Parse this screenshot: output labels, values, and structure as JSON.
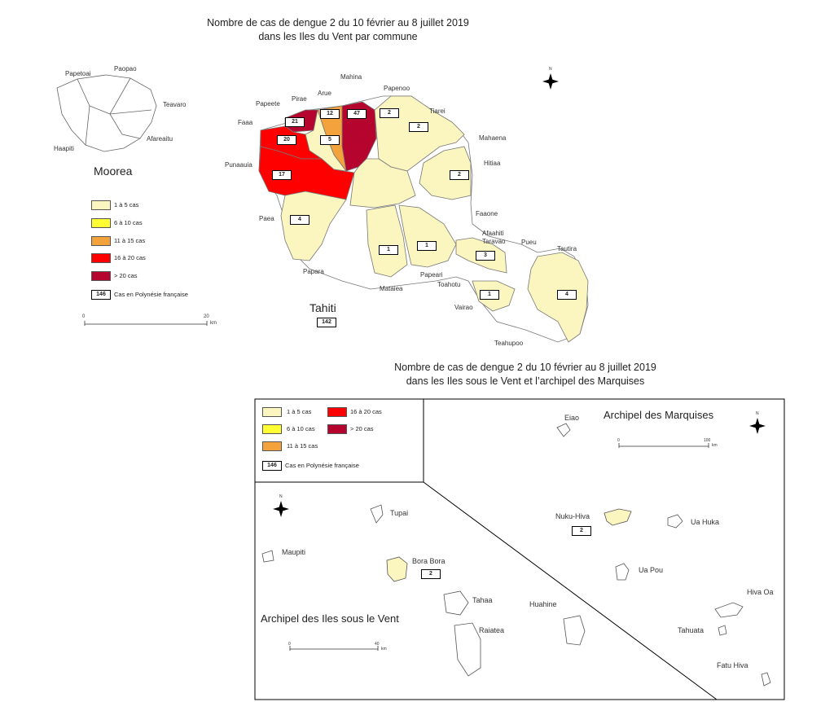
{
  "top_title": {
    "line1": "Nombre de cas de dengue 2 du 10 février au 8 juillet 2019",
    "line2": "dans les Iles du Vent par commune"
  },
  "bottom_title": {
    "line1": "Nombre de cas de dengue 2 du 10 février au 8 juillet 2019",
    "line2": "dans les Iles sous le Vent et l’archipel des Marquises"
  },
  "colors": {
    "c1_5": "#fbf5bf",
    "c6_10": "#ffff33",
    "c11_15": "#f4a23b",
    "c16_20": "#ff0000",
    "c20plus": "#b5052f"
  },
  "legend": {
    "items": [
      "1 à 5 cas",
      "6 à 10 cas",
      "11 à 15 cas",
      "16 à 20 cas",
      "> 20 cas"
    ],
    "box_value": "146",
    "box_text": "Cas en Polynésie française"
  },
  "moorea": {
    "name": "Moorea",
    "communes": [
      "Papetoai",
      "Paopao",
      "Teavaro",
      "Afareaitu",
      "Haapiti"
    ]
  },
  "tahiti": {
    "name": "Tahiti",
    "total": "142",
    "labels": [
      "Mahina",
      "Arue",
      "Pirae",
      "Papeete",
      "Faaa",
      "Punaauia",
      "Paea",
      "Papara",
      "Mataiea",
      "Papeari",
      "Toahotu",
      "Vairao",
      "Teahupoo",
      "Taravao",
      "Afaahiti",
      "Pueu",
      "Tautira",
      "Faaone",
      "Hitiaa",
      "Mahaena",
      "Tiarei",
      "Papenoo"
    ],
    "values": {
      "mahina": "47",
      "arue": "12",
      "papeete": "21",
      "faaa": "20",
      "pirae": "5",
      "punaauia": "17",
      "paea": "4",
      "papenoo": "2",
      "tiarei": "2",
      "hitiaa": "2",
      "mataiea": "1",
      "papeari": "1",
      "taravao": "3",
      "vairao": "1",
      "tautira": "4"
    }
  },
  "scale_top": {
    "zero": "0",
    "max": "20",
    "unit": "km"
  },
  "marquises": {
    "title": "Archipel des Marquises",
    "islands": [
      "Eiao",
      "Nuku-Hiva",
      "Ua Huka",
      "Ua Pou",
      "Hiva Oa",
      "Tahuata",
      "Fatu Hiva"
    ],
    "nuku_hiva_value": "2",
    "scale": {
      "zero": "0",
      "max": "100",
      "unit": "km"
    }
  },
  "sous_le_vent": {
    "title": "Archipel des  Iles sous le Vent",
    "islands": [
      "Tupai",
      "Maupiti",
      "Bora Bora",
      "Tahaa",
      "Huahine",
      "Raiatea"
    ],
    "bora_value": "2",
    "scale": {
      "zero": "0",
      "max": "40",
      "unit": "km"
    }
  },
  "north_label": "N"
}
